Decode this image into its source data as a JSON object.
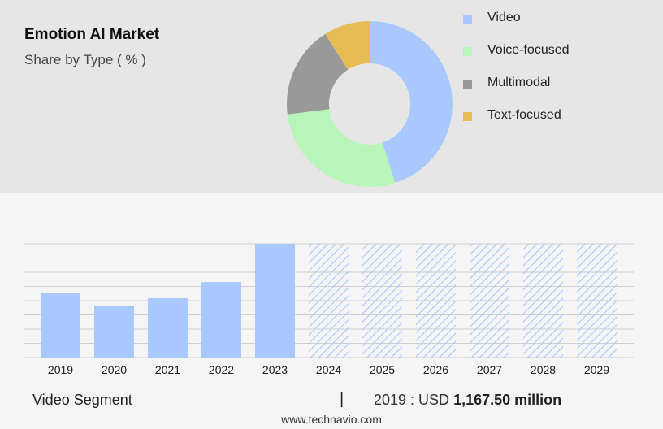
{
  "chart_data": [
    {
      "type": "pie",
      "title": "Emotion AI Market",
      "subtitle": "Share by Type ( % )",
      "legend_position": "right",
      "slices": [
        {
          "name": "Video",
          "value": 45,
          "color": "#a8c8ff"
        },
        {
          "name": "Voice-focused",
          "value": 28,
          "color": "#b8f5b8"
        },
        {
          "name": "Multimodal",
          "value": 18,
          "color": "#999999"
        },
        {
          "name": "Text-focused",
          "value": 9,
          "color": "#e6bd55"
        }
      ]
    },
    {
      "type": "bar",
      "categories": [
        "2019",
        "2020",
        "2021",
        "2022",
        "2023",
        "2024",
        "2025",
        "2026",
        "2027",
        "2028",
        "2029"
      ],
      "values": [
        1167.5,
        930,
        1070,
        1360,
        2050,
        null,
        null,
        null,
        null,
        null,
        null
      ],
      "forecast_categories": [
        "2024",
        "2025",
        "2026",
        "2027",
        "2028",
        "2029"
      ],
      "ylim": [
        0,
        2050
      ],
      "grid": true,
      "bar_color": "#a8c8ff"
    }
  ],
  "footer": {
    "segment_label": "Video Segment",
    "separator": "|",
    "value_prefix": "2019 : USD",
    "value_amount": "1,167.50 million"
  },
  "watermark": "www.technavio.com"
}
